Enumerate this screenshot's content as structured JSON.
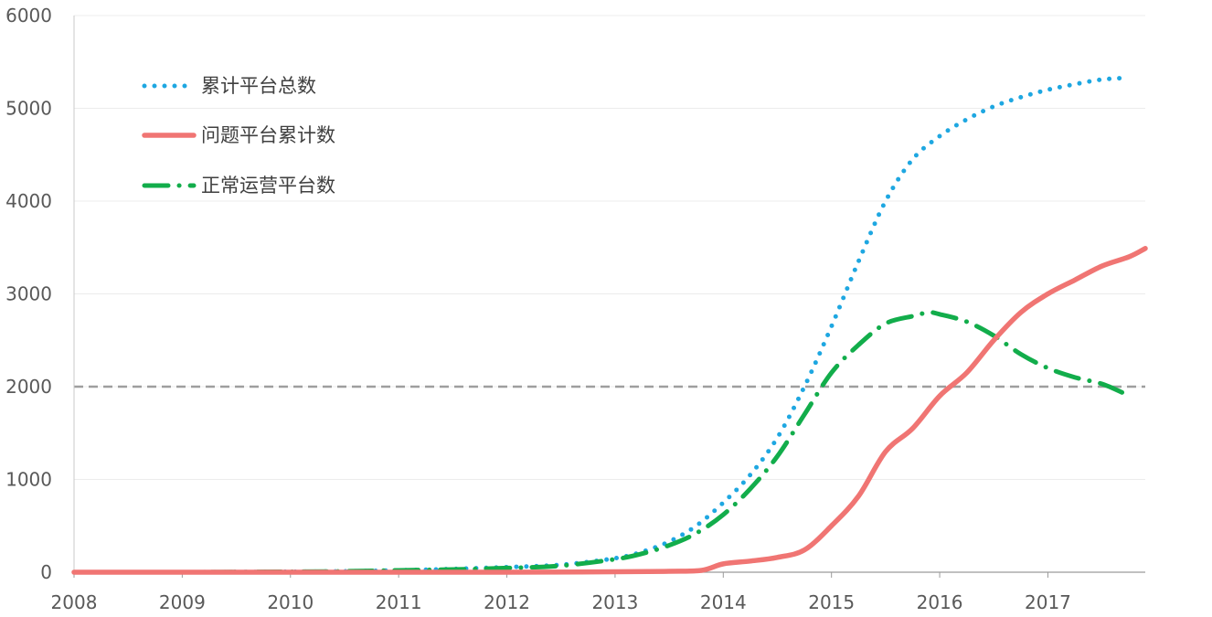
{
  "chart_data": {
    "type": "line",
    "title": "",
    "xlabel": "",
    "ylabel": "",
    "xlim": [
      2008,
      2017.9
    ],
    "ylim": [
      0,
      6000
    ],
    "x_ticks": [
      "2008",
      "2009",
      "2010",
      "2011",
      "2012",
      "2013",
      "2014",
      "2015",
      "2016",
      "2017"
    ],
    "y_ticks": [
      "0",
      "1000",
      "2000",
      "3000",
      "4000",
      "5000",
      "6000"
    ],
    "grid": true,
    "legend_position": "top-left",
    "reference_line": {
      "y": 2000,
      "style": "dashed",
      "color": "#9e9e9e"
    },
    "series": [
      {
        "name": "累计平台总数",
        "color": "#1ea7e1",
        "style": "dotted",
        "x": [
          2008.0,
          2009.0,
          2010.0,
          2010.5,
          2011.0,
          2011.5,
          2012.0,
          2012.5,
          2013.0,
          2013.25,
          2013.5,
          2013.75,
          2014.0,
          2014.25,
          2014.5,
          2014.75,
          2015.0,
          2015.25,
          2015.5,
          2015.75,
          2016.0,
          2016.25,
          2016.5,
          2016.75,
          2017.0,
          2017.25,
          2017.5,
          2017.75
        ],
        "values": [
          0,
          0,
          5,
          10,
          20,
          35,
          55,
          80,
          150,
          220,
          330,
          500,
          750,
          1050,
          1450,
          2000,
          2650,
          3350,
          4000,
          4450,
          4700,
          4880,
          5020,
          5120,
          5200,
          5260,
          5310,
          5330
        ]
      },
      {
        "name": "问题平台累计数",
        "color": "#f07573",
        "style": "solid",
        "x": [
          2008.0,
          2012.0,
          2013.0,
          2013.5,
          2013.8,
          2014.0,
          2014.25,
          2014.5,
          2014.75,
          2015.0,
          2015.25,
          2015.5,
          2015.75,
          2016.0,
          2016.25,
          2016.5,
          2016.75,
          2017.0,
          2017.25,
          2017.5,
          2017.75,
          2017.9
        ],
        "values": [
          0,
          0,
          5,
          10,
          20,
          90,
          120,
          160,
          240,
          500,
          820,
          1300,
          1550,
          1900,
          2150,
          2500,
          2800,
          3000,
          3150,
          3300,
          3400,
          3490
        ]
      },
      {
        "name": "正常运营平台数",
        "color": "#12ad4b",
        "style": "dash-dot",
        "x": [
          2008.0,
          2009.0,
          2010.0,
          2010.5,
          2011.0,
          2011.5,
          2012.0,
          2012.5,
          2013.0,
          2013.25,
          2013.5,
          2013.75,
          2014.0,
          2014.25,
          2014.5,
          2014.75,
          2015.0,
          2015.25,
          2015.5,
          2015.75,
          2015.9,
          2016.0,
          2016.25,
          2016.5,
          2016.75,
          2017.0,
          2017.25,
          2017.5,
          2017.7
        ],
        "values": [
          0,
          0,
          5,
          10,
          20,
          30,
          45,
          70,
          140,
          200,
          290,
          420,
          620,
          900,
          1250,
          1700,
          2150,
          2450,
          2680,
          2760,
          2800,
          2780,
          2700,
          2550,
          2350,
          2200,
          2100,
          2030,
          1930
        ]
      }
    ]
  }
}
